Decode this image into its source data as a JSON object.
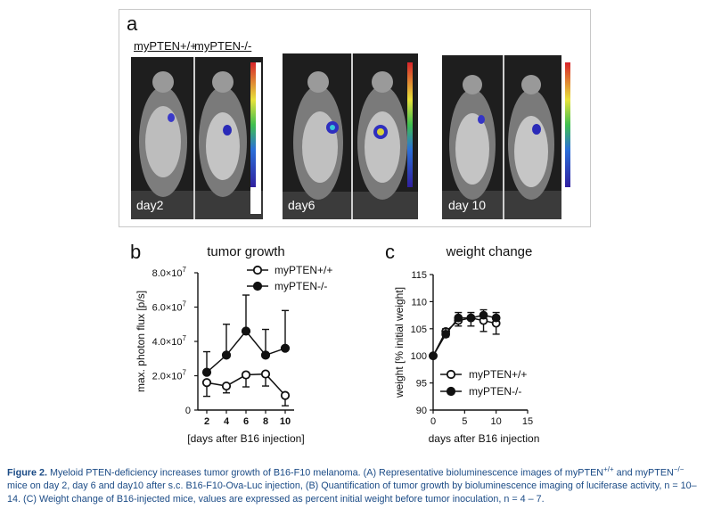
{
  "panel_a": {
    "letter": "a",
    "group_labels": [
      "myPTEN+/+",
      "myPTEN-/-"
    ],
    "images": [
      {
        "day": "day2"
      },
      {
        "day": "day6"
      },
      {
        "day": "day 10"
      }
    ]
  },
  "panel_b": {
    "letter": "b",
    "chart_data": {
      "type": "line",
      "title": "tumor growth",
      "xlabel": "[days after B16 injection]",
      "ylabel": "max. photon flux [p/s]",
      "x": [
        2,
        4,
        6,
        8,
        10
      ],
      "xticks": [
        "2",
        "4",
        "6",
        "8",
        "10"
      ],
      "yticks": [
        {
          "value": 0,
          "label": "0"
        },
        {
          "value": 20000000,
          "label": "2.0×10"
        },
        {
          "value": 40000000,
          "label": "4.0×10"
        },
        {
          "value": 60000000,
          "label": "6.0×10"
        },
        {
          "value": 80000000,
          "label": "8.0×10"
        }
      ],
      "ytick_exponent": "7",
      "ylim": [
        0,
        80000000
      ],
      "legend_position": "top-right",
      "series": [
        {
          "name": "myPTEN+/+",
          "marker": "open-circle",
          "values": [
            16000000,
            14000000,
            20500000,
            21000000,
            8500000
          ],
          "errors": [
            8000000,
            4000000,
            7000000,
            7000000,
            6000000
          ]
        },
        {
          "name": "myPTEN-/-",
          "marker": "filled-circle",
          "values": [
            22000000,
            32000000,
            46000000,
            32000000,
            36000000
          ],
          "errors": [
            12000000,
            18000000,
            21000000,
            15000000,
            22000000
          ]
        }
      ]
    }
  },
  "panel_c": {
    "letter": "c",
    "chart_data": {
      "type": "line",
      "title": "weight change",
      "xlabel": "days after B16 injection",
      "ylabel": "weight [% initial weight]",
      "xlim": [
        0,
        15
      ],
      "xticks": [
        "0",
        "5",
        "10",
        "15"
      ],
      "ylim": [
        90,
        115
      ],
      "yticks": [
        "90",
        "95",
        "100",
        "105",
        "110",
        "115"
      ],
      "legend_position": "bottom-right",
      "x": [
        0,
        2,
        4,
        6,
        8,
        10
      ],
      "series": [
        {
          "name": "myPTEN+/+",
          "marker": "open-circle",
          "values": [
            100,
            104.5,
            106.5,
            107,
            106.5,
            106
          ],
          "errors": [
            0,
            1,
            1,
            1.5,
            2,
            2
          ]
        },
        {
          "name": "myPTEN-/-",
          "marker": "filled-circle",
          "values": [
            100,
            104,
            107,
            107,
            107.5,
            107
          ],
          "errors": [
            0,
            1,
            1,
            1,
            1,
            1
          ]
        }
      ]
    }
  },
  "caption": {
    "label": "Figure 2.",
    "seg1": " Myeloid PTEN-deficiency increases tumor growth of B16-F10 melanoma. (A) Representative bioluminescence images of myPTEN",
    "sup1": "+/+",
    "seg2": " and myPTEN",
    "sup2": "−/−",
    "seg3": " mice on day 2, day 6 and day10 after s.c. B16-F10-Ova-Luc injection, (B) Quantification of tumor growth by bioluminescence imaging of luciferase activity, n = 10–14. (C) Weight change of B16-injected mice, values are expressed as percent initial weight before tumor inoculation, n = 4 – 7."
  }
}
